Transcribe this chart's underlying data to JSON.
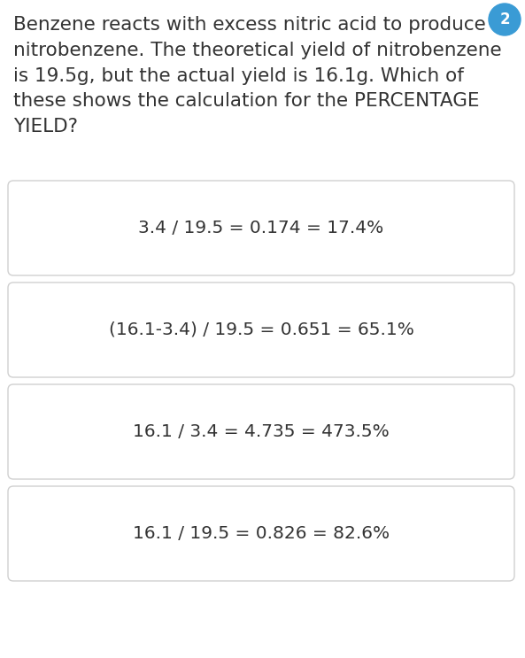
{
  "background_color": "#ffffff",
  "question_text": "Benzene reacts with excess nitric acid to produce\nnitrobenzene. The theoretical yield of nitrobenzene\nis 19.5g, but the actual yield is 16.1g. Which of\nthese shows the calculation for the PERCENTAGE\nYIELD?",
  "options": [
    "3.4 / 19.5 = 0.174 = 17.4%",
    "(16.1-3.4) / 19.5 = 0.651 = 65.1%",
    "16.1 / 3.4 = 4.735 = 473.5%",
    "16.1 / 19.5 = 0.826 = 82.6%"
  ],
  "question_fontsize": 15.5,
  "option_fontsize": 14.5,
  "text_color": "#333333",
  "box_edge_color": "#d0d0d0",
  "box_face_color": "#ffffff",
  "badge_color": "#3a9bd5",
  "fig_width": 5.93,
  "fig_height": 7.43,
  "dpi": 100
}
